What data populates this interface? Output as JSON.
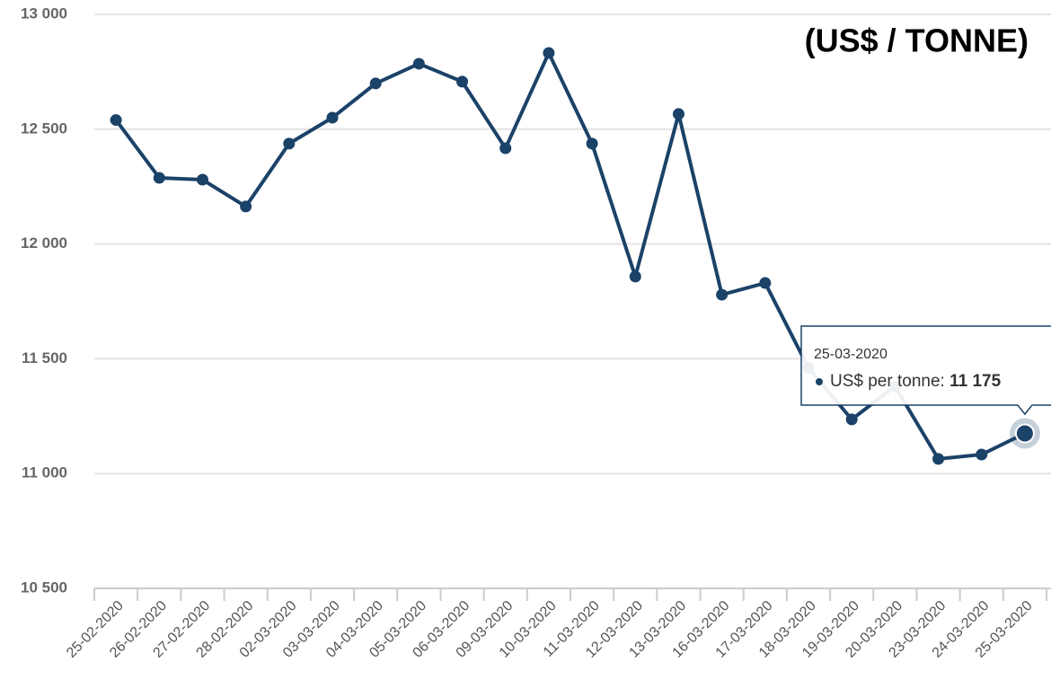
{
  "chart_data": {
    "type": "line",
    "annotation": "(US$ / TONNE)",
    "categories": [
      "25-02-2020",
      "26-02-2020",
      "27-02-2020",
      "28-02-2020",
      "02-03-2020",
      "03-03-2020",
      "04-03-2020",
      "05-03-2020",
      "06-03-2020",
      "09-03-2020",
      "10-03-2020",
      "11-03-2020",
      "12-03-2020",
      "13-03-2020",
      "16-03-2020",
      "17-03-2020",
      "18-03-2020",
      "19-03-2020",
      "20-03-2020",
      "23-03-2020",
      "24-03-2020",
      "25-03-2020"
    ],
    "series": [
      {
        "name": "US$ per tonne",
        "color": "#1b4268",
        "values": [
          12540,
          12288,
          12280,
          12163,
          12437,
          12550,
          12699,
          12785,
          12707,
          12417,
          12832,
          12437,
          11858,
          12566,
          11779,
          11830,
          11460,
          11236,
          11380,
          11064,
          11083,
          11175
        ],
        "value_labels": [
          null,
          null,
          null,
          null,
          null,
          null,
          null,
          null,
          null,
          null,
          null,
          null,
          null,
          null,
          null,
          null,
          null,
          null,
          null,
          null,
          null,
          "11 175"
        ]
      }
    ],
    "tooltip_label": "US$ per tonne:",
    "ylim": [
      10500,
      13000
    ],
    "yticks": [
      {
        "value": 10500,
        "label": "10 500"
      },
      {
        "value": 11000,
        "label": "11 000"
      },
      {
        "value": 11500,
        "label": "11 500"
      },
      {
        "value": 12000,
        "label": "12 000"
      },
      {
        "value": 12500,
        "label": "12 500"
      },
      {
        "value": 13000,
        "label": "13 000"
      }
    ],
    "grid": true
  }
}
